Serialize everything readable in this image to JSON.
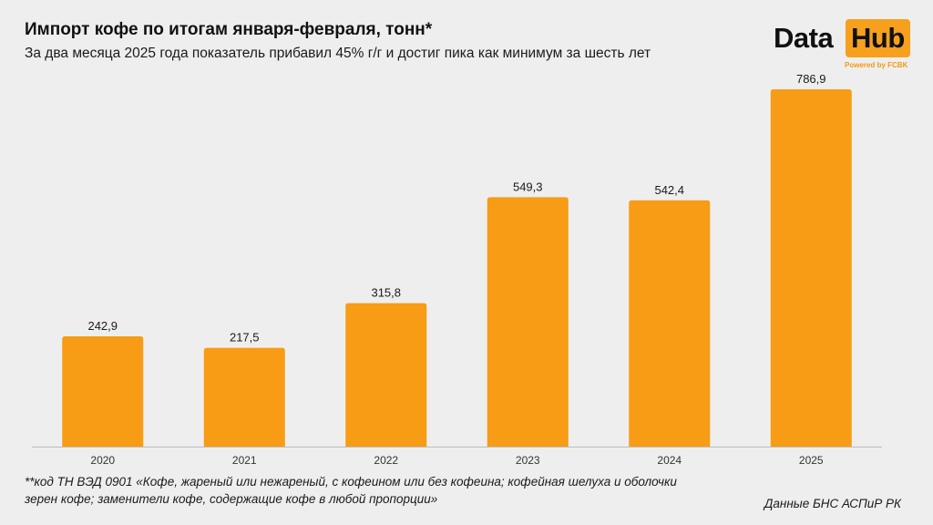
{
  "header": {
    "title": "Импорт кофе по итогам января-февраля, тонн*",
    "subtitle": "За два месяца 2025 года показатель прибавил 45% г/г и достиг пика как минимум за шесть лет"
  },
  "logo": {
    "word1": "Data",
    "word2": "Hub",
    "tagline": "Powered by FCBK",
    "accent_color": "#f7a01d"
  },
  "chart_data": {
    "type": "bar",
    "title": "Импорт кофе по итогам января-февраля, тонн*",
    "categories": [
      "2020",
      "2021",
      "2022",
      "2023",
      "2024",
      "2025"
    ],
    "values": [
      242.9,
      217.5,
      315.8,
      549.3,
      542.4,
      786.9
    ],
    "value_labels": [
      "242,9",
      "217,5",
      "315,8",
      "549,3",
      "542,4",
      "786,9"
    ],
    "xlabel": "",
    "ylabel": "",
    "ylim": [
      0,
      786.9
    ],
    "grid": false,
    "bar_color": "#f79c14"
  },
  "footer": {
    "footnote_line1": "**код ТН ВЭД 0901 «Кофе, жареный или нежареный, с кофеином или без кофеина; кофейная шелуха и оболочки",
    "footnote_line2": "зерен кофе; заменители кофе, содержащие кофе в любой пропорции»",
    "source": "Данные БНС АСПиР РК"
  }
}
